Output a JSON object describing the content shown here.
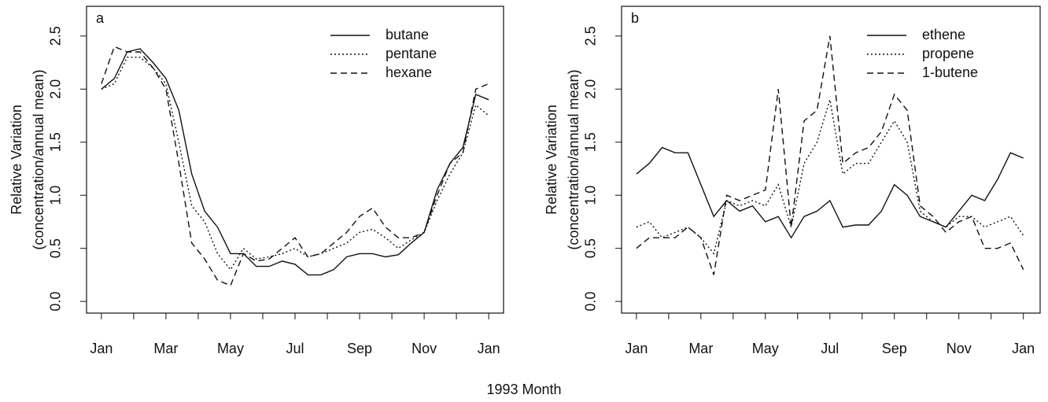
{
  "xlabel": "1993 Month",
  "chart_data": [
    {
      "type": "line",
      "label": "a",
      "ylabel": [
        "Relative Variation",
        "(concentration/annual mean)"
      ],
      "xlim": [
        -0.46,
        12.46
      ],
      "ylim": [
        -0.11,
        2.78
      ],
      "xticks": [
        {
          "value": 0,
          "label": "Jan"
        },
        {
          "value": 2,
          "label": "Mar"
        },
        {
          "value": 4,
          "label": "May"
        },
        {
          "value": 6,
          "label": "Jul"
        },
        {
          "value": 8,
          "label": "Sep"
        },
        {
          "value": 10,
          "label": "Nov"
        },
        {
          "value": 12,
          "label": "Jan"
        }
      ],
      "xminor_ticks": [
        1,
        3,
        5,
        7,
        9,
        11
      ],
      "yticks": [
        {
          "value": 0,
          "label": "0.0"
        },
        0.5,
        {
          "value": 1,
          "label": "1.0"
        },
        1.5,
        {
          "value": 2,
          "label": "2.0"
        },
        2.5
      ],
      "legend": "upper right",
      "x": [
        0,
        0.4,
        0.8,
        1.2,
        1.6,
        2.0,
        2.4,
        2.8,
        3.2,
        3.6,
        4.0,
        4.4,
        4.8,
        5.2,
        5.6,
        6.0,
        6.4,
        6.8,
        7.2,
        7.6,
        8.0,
        8.4,
        8.8,
        9.2,
        9.6,
        10.0,
        10.4,
        10.8,
        11.2,
        11.6,
        12.0
      ],
      "series": [
        {
          "name": "butane",
          "color": "#111",
          "dash": "solid",
          "values": [
            2.0,
            2.1,
            2.35,
            2.38,
            2.25,
            2.1,
            1.8,
            1.2,
            0.85,
            0.7,
            0.45,
            0.45,
            0.33,
            0.33,
            0.38,
            0.35,
            0.25,
            0.25,
            0.3,
            0.42,
            0.45,
            0.45,
            0.42,
            0.44,
            0.55,
            0.65,
            1.05,
            1.3,
            1.45,
            1.95,
            1.9
          ]
        },
        {
          "name": "pentane",
          "color": "#111",
          "dash": "dotted",
          "values": [
            2.0,
            2.05,
            2.3,
            2.3,
            2.2,
            2.05,
            1.5,
            0.9,
            0.75,
            0.45,
            0.3,
            0.5,
            0.4,
            0.42,
            0.45,
            0.5,
            0.42,
            0.45,
            0.5,
            0.55,
            0.65,
            0.68,
            0.6,
            0.5,
            0.58,
            0.65,
            0.95,
            1.2,
            1.4,
            1.85,
            1.75
          ]
        },
        {
          "name": "hexane",
          "color": "#111",
          "dash": "dashed",
          "values": [
            2.05,
            2.4,
            2.35,
            2.35,
            2.2,
            2.0,
            1.3,
            0.55,
            0.4,
            0.2,
            0.15,
            0.45,
            0.38,
            0.4,
            0.5,
            0.6,
            0.42,
            0.45,
            0.55,
            0.65,
            0.8,
            0.88,
            0.7,
            0.6,
            0.6,
            0.65,
            1.0,
            1.3,
            1.4,
            2.0,
            2.05
          ]
        }
      ]
    },
    {
      "type": "line",
      "label": "b",
      "ylabel": [
        "Relative Variation",
        "(concentration/annual mean)"
      ],
      "xlim": [
        -0.46,
        12.52
      ],
      "ylim": [
        -0.11,
        2.78
      ],
      "xticks": [
        {
          "value": 0,
          "label": "Jan"
        },
        {
          "value": 2,
          "label": "Mar"
        },
        {
          "value": 4,
          "label": "May"
        },
        {
          "value": 6,
          "label": "Jul"
        },
        {
          "value": 8,
          "label": "Sep"
        },
        {
          "value": 10,
          "label": "Nov"
        },
        {
          "value": 12,
          "label": "Jan"
        }
      ],
      "xminor_ticks": [
        1,
        3,
        5,
        7,
        9,
        11
      ],
      "yticks": [
        {
          "value": 0,
          "label": "0.0"
        },
        0.5,
        {
          "value": 1,
          "label": "1.0"
        },
        1.5,
        {
          "value": 2,
          "label": "2.0"
        },
        2.5
      ],
      "legend": "upper right",
      "x": [
        0,
        0.4,
        0.8,
        1.2,
        1.6,
        2.0,
        2.4,
        2.8,
        3.2,
        3.6,
        4.0,
        4.4,
        4.8,
        5.2,
        5.6,
        6.0,
        6.4,
        6.8,
        7.2,
        7.6,
        8.0,
        8.4,
        8.8,
        9.2,
        9.6,
        10.0,
        10.4,
        10.8,
        11.2,
        11.6,
        12.0
      ],
      "series": [
        {
          "name": "ethene",
          "color": "#111",
          "dash": "solid",
          "values": [
            1.2,
            1.3,
            1.45,
            1.4,
            1.4,
            1.1,
            0.8,
            0.95,
            0.85,
            0.9,
            0.75,
            0.8,
            0.6,
            0.8,
            0.85,
            0.95,
            0.7,
            0.72,
            0.72,
            0.85,
            1.1,
            1.0,
            0.8,
            0.75,
            0.7,
            0.85,
            1.0,
            0.95,
            1.15,
            1.4,
            1.35
          ]
        },
        {
          "name": "propene",
          "color": "#111",
          "dash": "dotted",
          "values": [
            0.7,
            0.75,
            0.6,
            0.65,
            0.7,
            0.6,
            0.45,
            0.95,
            0.9,
            0.95,
            0.9,
            1.1,
            0.7,
            1.3,
            1.5,
            1.9,
            1.2,
            1.3,
            1.3,
            1.5,
            1.7,
            1.5,
            0.85,
            0.75,
            0.7,
            0.8,
            0.8,
            0.7,
            0.75,
            0.8,
            0.62
          ]
        },
        {
          "name": "1-butene",
          "color": "#111",
          "dash": "dashed",
          "values": [
            0.5,
            0.6,
            0.6,
            0.6,
            0.7,
            0.6,
            0.25,
            1.0,
            0.95,
            1.0,
            1.05,
            2.0,
            0.7,
            1.7,
            1.8,
            2.5,
            1.3,
            1.4,
            1.45,
            1.6,
            1.95,
            1.8,
            0.9,
            0.8,
            0.65,
            0.75,
            0.8,
            0.5,
            0.5,
            0.55,
            0.3
          ]
        }
      ]
    }
  ]
}
